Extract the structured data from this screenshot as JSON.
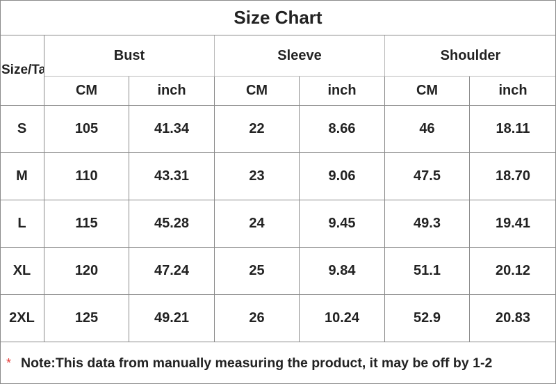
{
  "title": "Size Chart",
  "table": {
    "corner": "Size/Ta",
    "groups": [
      "Bust",
      "Sleeve",
      "Shoulder"
    ],
    "units": [
      "CM",
      "inch",
      "CM",
      "inch",
      "CM",
      "inch"
    ],
    "rows": [
      [
        "S",
        "105",
        "41.34",
        "22",
        "8.66",
        "46",
        "18.11"
      ],
      [
        "M",
        "110",
        "43.31",
        "23",
        "9.06",
        "47.5",
        "18.70"
      ],
      [
        "L",
        "115",
        "45.28",
        "24",
        "9.45",
        "49.3",
        "19.41"
      ],
      [
        "XL",
        "120",
        "47.24",
        "25",
        "9.84",
        "51.1",
        "20.12"
      ],
      [
        "2XL",
        "125",
        "49.21",
        "26",
        "10.24",
        "52.9",
        "20.83"
      ]
    ]
  },
  "note": {
    "marker": "*",
    "text": "Note:This data from manually measuring the product, it may be off by 1-2"
  }
}
